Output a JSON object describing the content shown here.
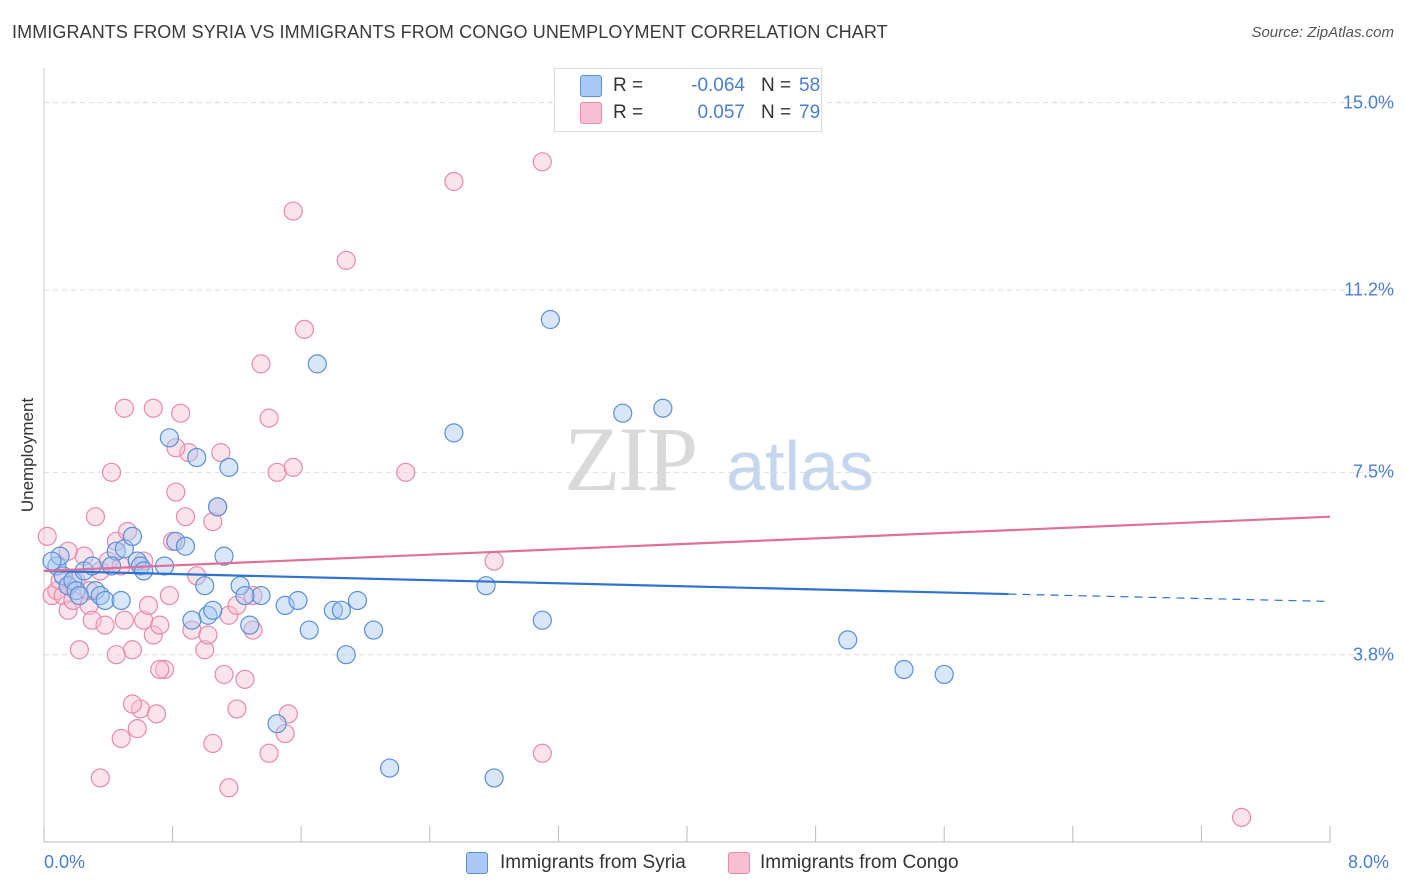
{
  "title": "IMMIGRANTS FROM SYRIA VS IMMIGRANTS FROM CONGO UNEMPLOYMENT CORRELATION CHART",
  "source": "Source: ZipAtlas.com",
  "watermark": {
    "zip": "ZIP",
    "atlas": "atlas"
  },
  "colors": {
    "syria_fill": "#a9c8f5",
    "syria_stroke": "#5b8fd6",
    "syria_line": "#2f72d0",
    "congo_fill": "#f7c0d2",
    "congo_stroke": "#e88aab",
    "congo_line": "#e0709a",
    "grid": "#dddddd",
    "tick_text": "#4a7fd0"
  },
  "legend": {
    "rows": [
      {
        "r_label": "R =",
        "r_value": "-0.064",
        "n_label": "N =",
        "n_value": "58"
      },
      {
        "r_label": "R =",
        "r_value": "0.057",
        "n_label": "N =",
        "n_value": "79"
      }
    ]
  },
  "bottom_legend": {
    "syria": "Immigrants from Syria",
    "congo": "Immigrants from Congo"
  },
  "chart_data": {
    "type": "scatter",
    "xlabel": "",
    "ylabel": "Unemployment",
    "xlim": [
      0,
      8.0
    ],
    "ylim": [
      0,
      15.5
    ],
    "x_tick_labels": [
      "0.0%",
      "8.0%"
    ],
    "y_ticks": [
      3.8,
      7.5,
      11.2,
      15.0
    ],
    "y_tick_labels": [
      "3.8%",
      "7.5%",
      "11.2%",
      "15.0%"
    ],
    "series": [
      {
        "name": "Immigrants from Syria",
        "r": -0.064,
        "n": 58,
        "trend": {
          "y_at_0": 5.5,
          "y_at_6": 5.03,
          "y_at_8": 4.88,
          "solid_to_x": 6.0
        },
        "points": [
          [
            0.08,
            5.6
          ],
          [
            0.1,
            5.8
          ],
          [
            0.12,
            5.4
          ],
          [
            0.15,
            5.2
          ],
          [
            0.18,
            5.3
          ],
          [
            0.2,
            5.1
          ],
          [
            0.25,
            5.5
          ],
          [
            0.3,
            5.6
          ],
          [
            0.32,
            5.1
          ],
          [
            0.35,
            5.0
          ],
          [
            0.38,
            4.9
          ],
          [
            0.45,
            5.9
          ],
          [
            0.48,
            4.9
          ],
          [
            0.5,
            5.95
          ],
          [
            0.55,
            6.2
          ],
          [
            0.58,
            5.7
          ],
          [
            0.6,
            5.6
          ],
          [
            0.62,
            5.5
          ],
          [
            0.75,
            5.6
          ],
          [
            0.78,
            8.2
          ],
          [
            0.82,
            6.1
          ],
          [
            0.88,
            6.0
          ],
          [
            0.95,
            7.8
          ],
          [
            1.0,
            5.2
          ],
          [
            1.02,
            4.6
          ],
          [
            1.05,
            4.7
          ],
          [
            1.08,
            6.8
          ],
          [
            1.12,
            5.8
          ],
          [
            1.15,
            7.6
          ],
          [
            1.22,
            5.2
          ],
          [
            1.28,
            4.4
          ],
          [
            1.35,
            5.0
          ],
          [
            1.45,
            2.4
          ],
          [
            1.5,
            4.8
          ],
          [
            1.58,
            4.9
          ],
          [
            1.65,
            4.3
          ],
          [
            1.7,
            9.7
          ],
          [
            1.8,
            4.7
          ],
          [
            1.85,
            4.7
          ],
          [
            1.88,
            3.8
          ],
          [
            1.95,
            4.9
          ],
          [
            2.05,
            4.3
          ],
          [
            2.15,
            1.5
          ],
          [
            2.55,
            8.3
          ],
          [
            2.75,
            5.2
          ],
          [
            2.8,
            1.3
          ],
          [
            3.1,
            4.5
          ],
          [
            3.15,
            10.6
          ],
          [
            3.6,
            8.7
          ],
          [
            3.85,
            8.8
          ],
          [
            5.0,
            4.1
          ],
          [
            5.35,
            3.5
          ],
          [
            5.6,
            3.4
          ],
          [
            0.05,
            5.7
          ],
          [
            0.22,
            5.0
          ],
          [
            0.42,
            5.6
          ],
          [
            0.92,
            4.5
          ],
          [
            1.25,
            5.0
          ]
        ]
      },
      {
        "name": "Immigrants from Congo",
        "r": 0.057,
        "n": 79,
        "trend": {
          "y_at_0": 5.5,
          "y_at_8": 6.6,
          "solid_to_x": 8.0
        },
        "points": [
          [
            0.02,
            6.2
          ],
          [
            0.05,
            5.0
          ],
          [
            0.08,
            5.1
          ],
          [
            0.1,
            5.3
          ],
          [
            0.12,
            5.0
          ],
          [
            0.15,
            4.7
          ],
          [
            0.18,
            4.9
          ],
          [
            0.2,
            5.3
          ],
          [
            0.22,
            3.9
          ],
          [
            0.25,
            5.8
          ],
          [
            0.28,
            4.8
          ],
          [
            0.3,
            4.5
          ],
          [
            0.32,
            6.6
          ],
          [
            0.35,
            5.5
          ],
          [
            0.38,
            4.4
          ],
          [
            0.4,
            5.7
          ],
          [
            0.42,
            7.5
          ],
          [
            0.45,
            6.1
          ],
          [
            0.48,
            5.6
          ],
          [
            0.5,
            4.5
          ],
          [
            0.52,
            6.3
          ],
          [
            0.55,
            3.9
          ],
          [
            0.58,
            2.3
          ],
          [
            0.6,
            2.7
          ],
          [
            0.62,
            4.5
          ],
          [
            0.65,
            4.8
          ],
          [
            0.68,
            4.2
          ],
          [
            0.7,
            2.6
          ],
          [
            0.72,
            4.4
          ],
          [
            0.75,
            3.5
          ],
          [
            0.78,
            5.0
          ],
          [
            0.8,
            6.1
          ],
          [
            0.82,
            7.1
          ],
          [
            0.85,
            8.7
          ],
          [
            0.88,
            6.6
          ],
          [
            0.9,
            7.9
          ],
          [
            0.92,
            4.3
          ],
          [
            0.95,
            5.4
          ],
          [
            1.0,
            3.9
          ],
          [
            1.02,
            4.2
          ],
          [
            1.05,
            6.5
          ],
          [
            1.08,
            6.8
          ],
          [
            1.1,
            7.9
          ],
          [
            1.12,
            3.4
          ],
          [
            1.15,
            4.6
          ],
          [
            1.2,
            4.8
          ],
          [
            1.25,
            3.3
          ],
          [
            1.3,
            5.0
          ],
          [
            1.35,
            9.7
          ],
          [
            1.4,
            8.6
          ],
          [
            1.45,
            7.5
          ],
          [
            1.5,
            2.2
          ],
          [
            1.55,
            12.8
          ],
          [
            2.55,
            13.4
          ],
          [
            3.1,
            13.8
          ],
          [
            1.88,
            11.8
          ],
          [
            1.62,
            10.4
          ],
          [
            1.52,
            2.6
          ],
          [
            0.5,
            8.8
          ],
          [
            0.68,
            8.8
          ],
          [
            0.82,
            8.0
          ],
          [
            1.15,
            1.1
          ],
          [
            1.2,
            2.7
          ],
          [
            0.55,
            2.8
          ],
          [
            0.72,
            3.5
          ],
          [
            1.3,
            4.3
          ],
          [
            1.55,
            7.6
          ],
          [
            2.25,
            7.5
          ],
          [
            3.1,
            1.8
          ],
          [
            2.8,
            5.7
          ],
          [
            7.45,
            0.5
          ],
          [
            0.35,
            1.3
          ],
          [
            0.62,
            5.7
          ],
          [
            0.48,
            2.1
          ],
          [
            1.05,
            2.0
          ],
          [
            1.4,
            1.8
          ],
          [
            0.28,
            5.1
          ],
          [
            0.45,
            3.8
          ],
          [
            0.15,
            5.9
          ]
        ]
      }
    ]
  }
}
